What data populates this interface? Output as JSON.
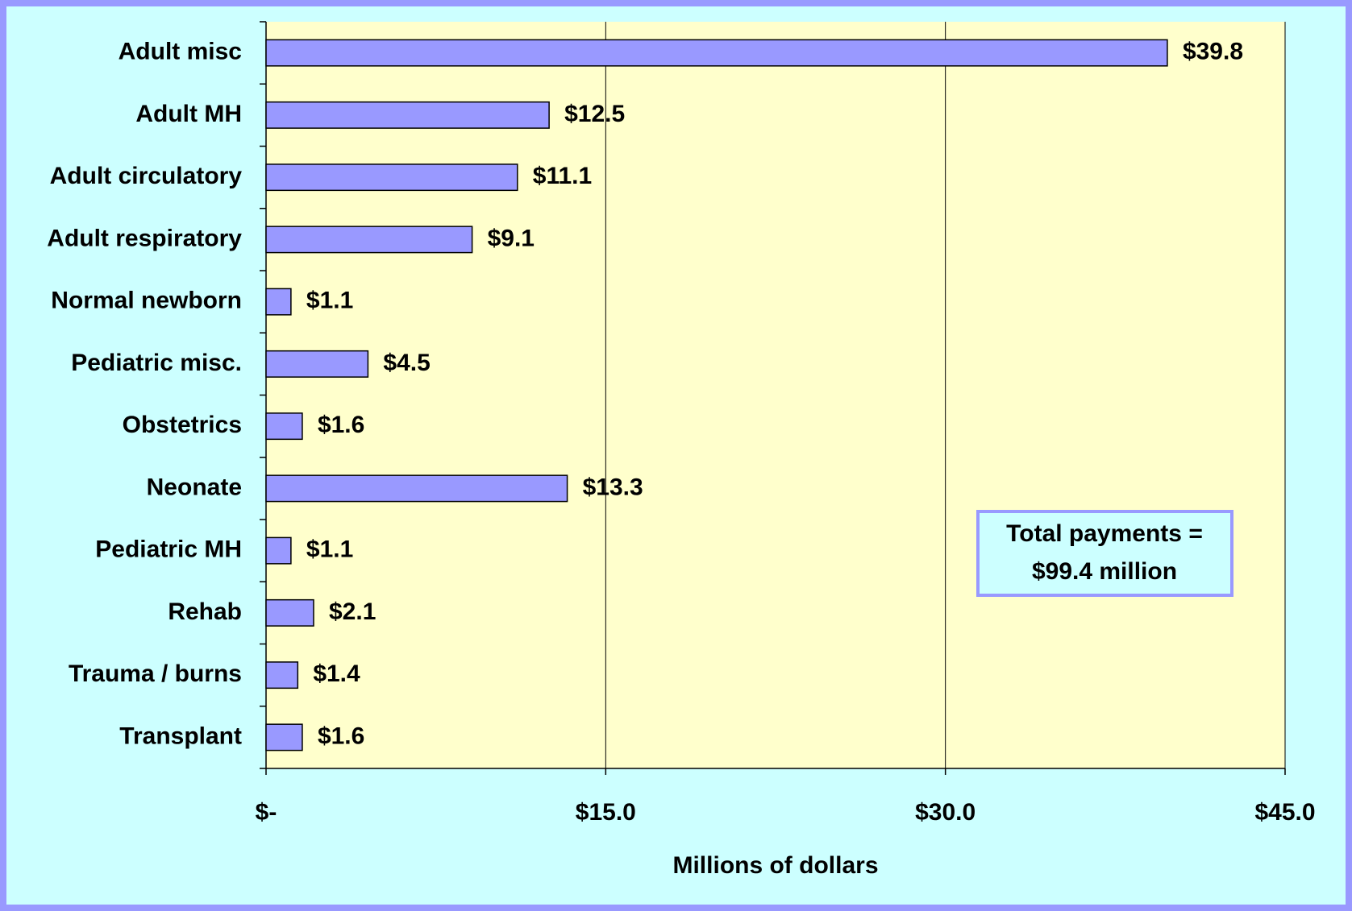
{
  "chart_data": {
    "type": "bar",
    "orientation": "horizontal",
    "categories": [
      "Adult misc",
      "Adult MH",
      "Adult circulatory",
      "Adult respiratory",
      "Normal newborn",
      "Pediatric misc.",
      "Obstetrics",
      "Neonate",
      "Pediatric MH",
      "Rehab",
      "Trauma / burns",
      "Transplant"
    ],
    "values": [
      39.8,
      12.5,
      11.1,
      9.1,
      1.1,
      4.5,
      1.6,
      13.3,
      1.1,
      2.1,
      1.4,
      1.6
    ],
    "value_labels": [
      "$39.8",
      "$12.5",
      "$11.1",
      "$9.1",
      "$1.1",
      "$4.5",
      "$1.6",
      "$13.3",
      "$1.1",
      "$2.1",
      "$1.4",
      "$1.6"
    ],
    "color": "#9999ff",
    "x_label": "Millions of dollars",
    "xlim": [
      0,
      45
    ],
    "xticks": [
      {
        "value": 0,
        "label": "$-"
      },
      {
        "value": 15,
        "label": "$15.0"
      },
      {
        "value": 30,
        "label": "$30.0"
      },
      {
        "value": 45,
        "label": "$45.0"
      }
    ],
    "grid": true,
    "annotation": [
      "Total payments =",
      "$99.4 million"
    ]
  }
}
